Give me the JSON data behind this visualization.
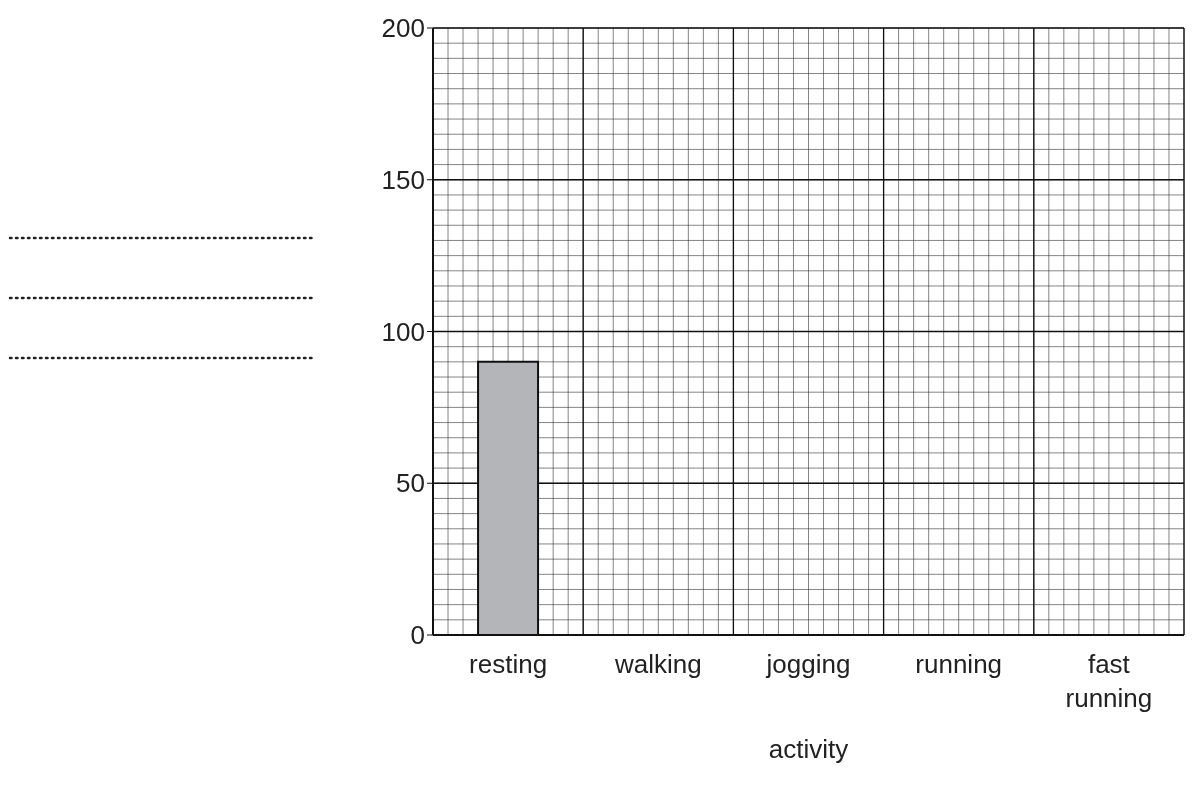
{
  "chart_data": {
    "type": "bar",
    "xlabel": "activity",
    "categories": [
      "resting",
      "walking",
      "jogging",
      "running",
      "fast running"
    ],
    "values": [
      90,
      null,
      null,
      null,
      null
    ],
    "color": "#b4b5b8",
    "ylim": [
      0,
      200
    ],
    "yticks": [
      0,
      50,
      100,
      150,
      200
    ],
    "grid": true
  }
}
